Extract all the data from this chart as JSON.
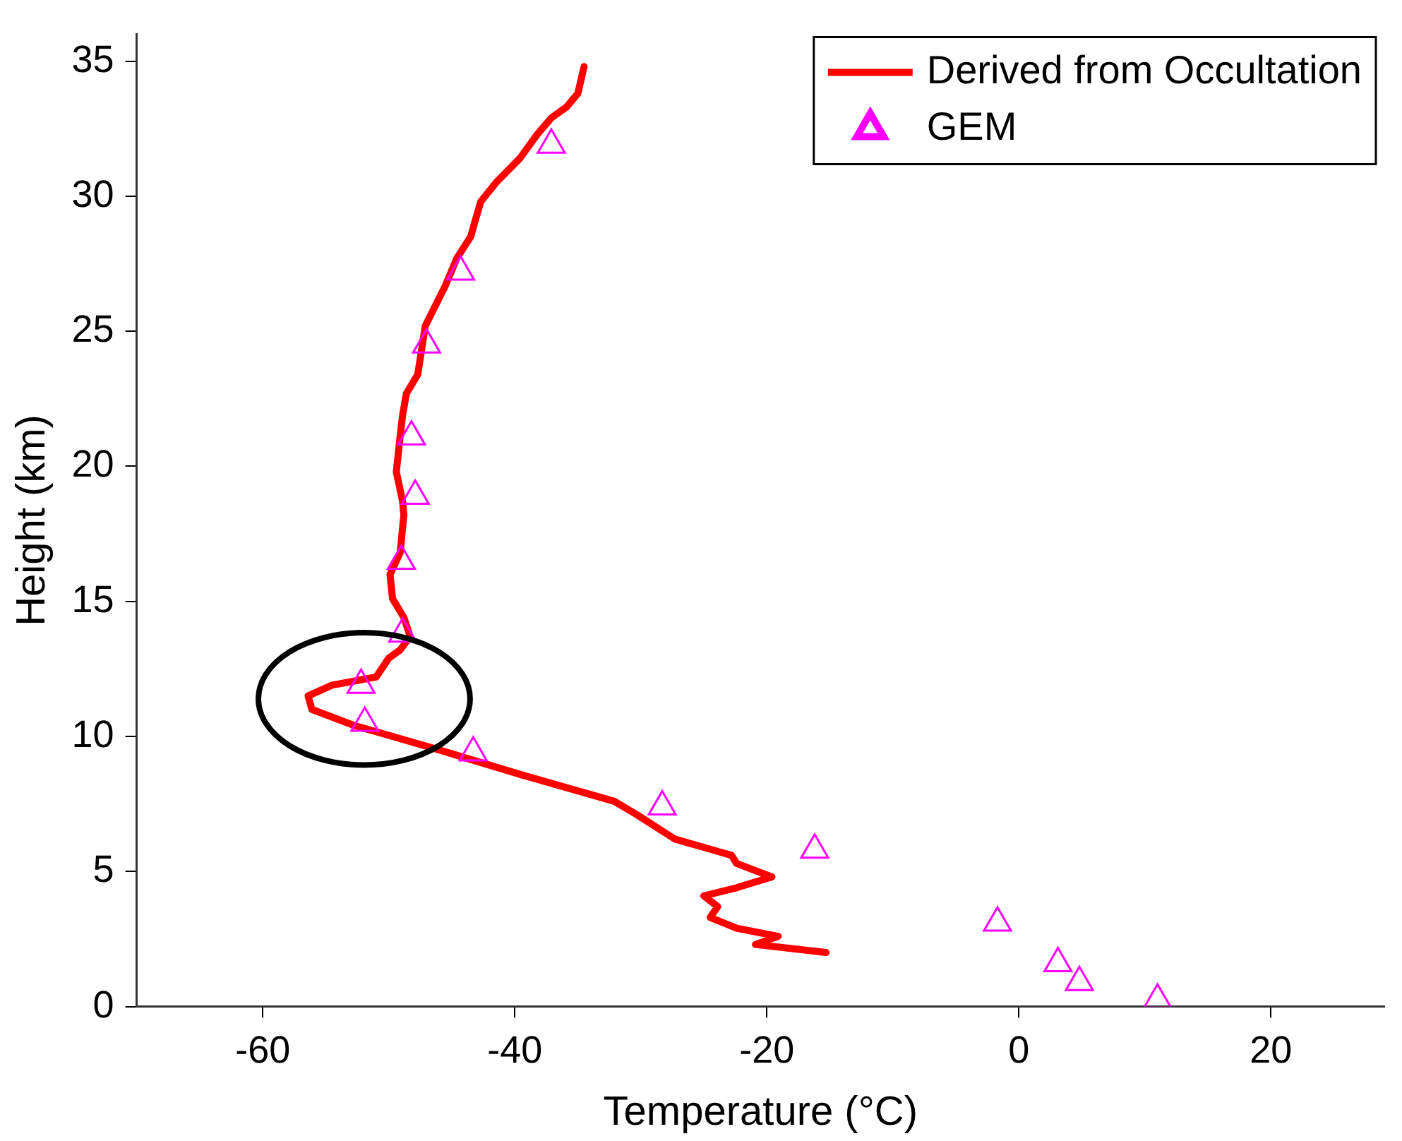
{
  "chart_data": {
    "type": "line",
    "xlabel": "Temperature (°C)",
    "ylabel": "Height (km)",
    "xlim": [
      -70,
      29
    ],
    "xticks": [
      -60,
      -40,
      -20,
      0,
      20
    ],
    "ylim": [
      0,
      36
    ],
    "yticks": [
      0,
      5,
      10,
      15,
      20,
      25,
      30,
      35
    ],
    "grid": false,
    "legend": "top right",
    "series": [
      {
        "name": "Derived from Occultation",
        "color": "#ff0000",
        "line_style": "solid",
        "marker": "none",
        "x": [
          -34.5,
          -35.0,
          -35.9,
          -37.1,
          -38.2,
          -39.6,
          -41.5,
          -42.7,
          -43.2,
          -43.5,
          -44.6,
          -45.5,
          -47.1,
          -47.4,
          -47.7,
          -48.6,
          -48.9,
          -49.1,
          -49.4,
          -48.9,
          -48.8,
          -49.1,
          -49.9,
          -49.7,
          -48.8,
          -48.3,
          -49.1,
          -50.0,
          -51.0,
          -54.5,
          -56.4,
          -56.1,
          -52.7,
          -49.7,
          -46.0,
          -39.6,
          -32.1,
          -30.3,
          -27.3,
          -22.8,
          -22.4,
          -19.6,
          -22.4,
          -25.0,
          -23.9,
          -24.5,
          -22.4,
          -19.1,
          -20.9,
          -15.3
        ],
        "values": [
          34.8,
          33.8,
          33.3,
          32.9,
          32.3,
          31.4,
          30.5,
          29.8,
          29.0,
          28.5,
          27.7,
          26.7,
          25.2,
          24.3,
          23.4,
          22.7,
          21.9,
          21.1,
          19.8,
          18.7,
          18.2,
          16.8,
          16.0,
          15.1,
          14.4,
          13.7,
          13.2,
          12.9,
          12.2,
          11.9,
          11.5,
          11.0,
          10.4,
          10.0,
          9.5,
          8.6,
          7.6,
          7.1,
          6.2,
          5.6,
          5.3,
          4.8,
          4.4,
          4.1,
          3.7,
          3.3,
          2.9,
          2.6,
          2.3,
          2.0
        ]
      },
      {
        "name": "GEM",
        "type": "scatter",
        "color": "#ff00ff",
        "marker": "triangle",
        "x": [
          -37.1,
          -44.3,
          -47.0,
          -48.2,
          -47.9,
          -49.0,
          -48.9,
          -52.2,
          -51.9,
          -43.3,
          -28.3,
          -16.2,
          -1.7,
          3.1,
          4.8,
          11.0
        ],
        "values": [
          31.9,
          27.2,
          24.5,
          21.1,
          18.9,
          16.5,
          13.8,
          11.9,
          10.5,
          9.4,
          7.4,
          5.8,
          3.1,
          1.6,
          0.9,
          0.25
        ]
      }
    ]
  }
}
